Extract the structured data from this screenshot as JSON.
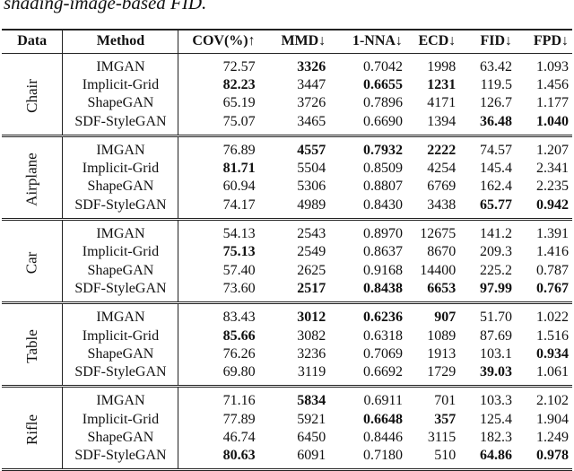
{
  "caption": "shading-image-based FID.",
  "headers": [
    "Data",
    "Method",
    "COV(%)↑",
    "MMD↓",
    "1-NNA↓",
    "ECD↓",
    "FID↓",
    "FPD↓"
  ],
  "blocks": [
    {
      "data": "Chair",
      "rows": [
        {
          "method": "IMGAN",
          "values": [
            "72.57",
            "3326",
            "0.7042",
            "1998",
            "63.42",
            "1.093"
          ],
          "bold": [
            1
          ]
        },
        {
          "method": "Implicit-Grid",
          "values": [
            "82.23",
            "3447",
            "0.6655",
            "1231",
            "119.5",
            "1.456"
          ],
          "bold": [
            0,
            2,
            3
          ]
        },
        {
          "method": "ShapeGAN",
          "values": [
            "65.19",
            "3726",
            "0.7896",
            "4171",
            "126.7",
            "1.177"
          ],
          "bold": []
        },
        {
          "method": "SDF-StyleGAN",
          "values": [
            "75.07",
            "3465",
            "0.6690",
            "1394",
            "36.48",
            "1.040"
          ],
          "bold": [
            4,
            5
          ]
        }
      ]
    },
    {
      "data": "Airplane",
      "rows": [
        {
          "method": "IMGAN",
          "values": [
            "76.89",
            "4557",
            "0.7932",
            "2222",
            "74.57",
            "1.207"
          ],
          "bold": [
            1,
            2,
            3
          ]
        },
        {
          "method": "Implicit-Grid",
          "values": [
            "81.71",
            "5504",
            "0.8509",
            "4254",
            "145.4",
            "2.341"
          ],
          "bold": [
            0
          ]
        },
        {
          "method": "ShapeGAN",
          "values": [
            "60.94",
            "5306",
            "0.8807",
            "6769",
            "162.4",
            "2.235"
          ],
          "bold": []
        },
        {
          "method": "SDF-StyleGAN",
          "values": [
            "74.17",
            "4989",
            "0.8430",
            "3438",
            "65.77",
            "0.942"
          ],
          "bold": [
            4,
            5
          ]
        }
      ]
    },
    {
      "data": "Car",
      "rows": [
        {
          "method": "IMGAN",
          "values": [
            "54.13",
            "2543",
            "0.8970",
            "12675",
            "141.2",
            "1.391"
          ],
          "bold": []
        },
        {
          "method": "Implicit-Grid",
          "values": [
            "75.13",
            "2549",
            "0.8637",
            "8670",
            "209.3",
            "1.416"
          ],
          "bold": [
            0
          ]
        },
        {
          "method": "ShapeGAN",
          "values": [
            "57.40",
            "2625",
            "0.9168",
            "14400",
            "225.2",
            "0.787"
          ],
          "bold": []
        },
        {
          "method": "SDF-StyleGAN",
          "values": [
            "73.60",
            "2517",
            "0.8438",
            "6653",
            "97.99",
            "0.767"
          ],
          "bold": [
            1,
            2,
            3,
            4,
            5
          ]
        }
      ]
    },
    {
      "data": "Table",
      "rows": [
        {
          "method": "IMGAN",
          "values": [
            "83.43",
            "3012",
            "0.6236",
            "907",
            "51.70",
            "1.022"
          ],
          "bold": [
            1,
            2,
            3
          ]
        },
        {
          "method": "Implicit-Grid",
          "values": [
            "85.66",
            "3082",
            "0.6318",
            "1089",
            "87.69",
            "1.516"
          ],
          "bold": [
            0
          ]
        },
        {
          "method": "ShapeGAN",
          "values": [
            "76.26",
            "3236",
            "0.7069",
            "1913",
            "103.1",
            "0.934"
          ],
          "bold": [
            5
          ]
        },
        {
          "method": "SDF-StyleGAN",
          "values": [
            "69.80",
            "3119",
            "0.6692",
            "1729",
            "39.03",
            "1.061"
          ],
          "bold": [
            4
          ]
        }
      ]
    },
    {
      "data": "Rifle",
      "rows": [
        {
          "method": "IMGAN",
          "values": [
            "71.16",
            "5834",
            "0.6911",
            "701",
            "103.3",
            "2.102"
          ],
          "bold": [
            1
          ]
        },
        {
          "method": "Implicit-Grid",
          "values": [
            "77.89",
            "5921",
            "0.6648",
            "357",
            "125.4",
            "1.904"
          ],
          "bold": [
            2,
            3
          ]
        },
        {
          "method": "ShapeGAN",
          "values": [
            "46.74",
            "6450",
            "0.8446",
            "3115",
            "182.3",
            "1.249"
          ],
          "bold": []
        },
        {
          "method": "SDF-StyleGAN",
          "values": [
            "80.63",
            "6091",
            "0.7180",
            "510",
            "64.86",
            "0.978"
          ],
          "bold": [
            0,
            4,
            5
          ]
        }
      ]
    }
  ]
}
